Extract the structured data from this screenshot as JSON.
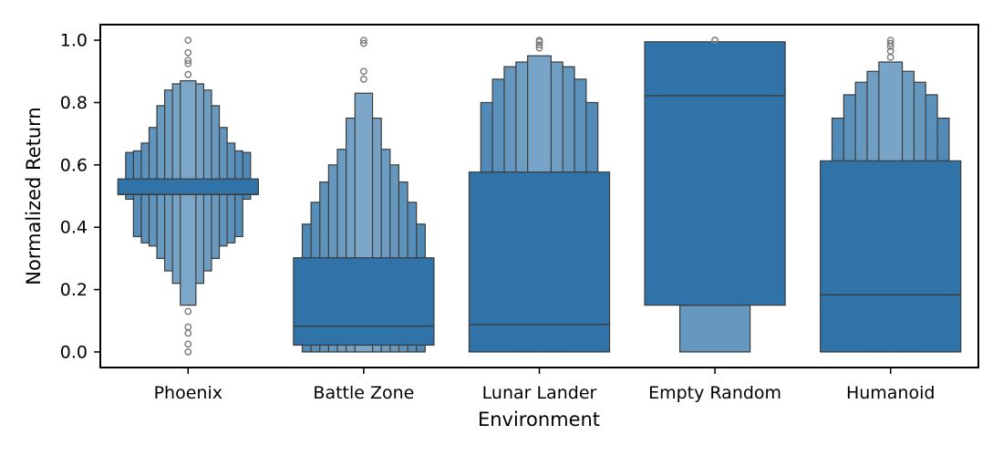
{
  "chart_data": {
    "type": "boxen",
    "xlabel": "Environment",
    "ylabel": "Normalized Return",
    "ylim": [
      -0.05,
      1.05
    ],
    "yticks": [
      0.0,
      0.2,
      0.4,
      0.6,
      0.8,
      1.0
    ],
    "ytick_labels": [
      "0.0",
      "0.2",
      "0.4",
      "0.6",
      "0.8",
      "1.0"
    ],
    "categories": [
      "Phoenix",
      "Battle Zone",
      "Lunar Lander",
      "Empty Random",
      "Humanoid"
    ],
    "colors": {
      "box": "#2f73a8",
      "edge": "#3a3a3a",
      "outlier": "#7a7a7a"
    },
    "boxes": [
      {
        "category": "Phoenix",
        "median": 0.505,
        "levels": [
          [
            0.49,
            0.64
          ],
          [
            0.37,
            0.645
          ],
          [
            0.35,
            0.67
          ],
          [
            0.34,
            0.72
          ],
          [
            0.3,
            0.79
          ],
          [
            0.26,
            0.84
          ],
          [
            0.22,
            0.86
          ],
          [
            0.15,
            0.87
          ]
        ],
        "iqr": [
          0.505,
          0.555
        ],
        "outliers": [
          0.0,
          0.025,
          0.06,
          0.08,
          0.13,
          0.89,
          0.925,
          0.935,
          0.96,
          1.0
        ]
      },
      {
        "category": "Battle Zone",
        "median": 0.083,
        "levels": [
          [
            0.0,
            0.41
          ],
          [
            0.0,
            0.48
          ],
          [
            0.0,
            0.545
          ],
          [
            0.0,
            0.6
          ],
          [
            0.0,
            0.65
          ],
          [
            0.0,
            0.75
          ],
          [
            0.0,
            0.83
          ]
        ],
        "iqr": [
          0.022,
          0.302
        ],
        "outliers": [
          0.875,
          0.9,
          0.99,
          1.0
        ]
      },
      {
        "category": "Lunar Lander",
        "median": 0.088,
        "levels": [
          [
            0.0,
            0.8
          ],
          [
            0.0,
            0.875
          ],
          [
            0.0,
            0.915
          ],
          [
            0.0,
            0.93
          ],
          [
            0.0,
            0.95
          ]
        ],
        "iqr": [
          0.0,
          0.577
        ],
        "outliers": [
          0.975,
          0.985,
          0.995,
          1.0
        ]
      },
      {
        "category": "Empty Random",
        "median": 0.822,
        "levels": [
          [
            0.0,
            0.15
          ]
        ],
        "iqr": [
          0.15,
          0.995
        ],
        "outliers": [
          1.0,
          1.0
        ]
      },
      {
        "category": "Humanoid",
        "median": 0.183,
        "levels": [
          [
            0.0,
            0.75
          ],
          [
            0.0,
            0.825
          ],
          [
            0.0,
            0.865
          ],
          [
            0.0,
            0.9
          ],
          [
            0.0,
            0.93
          ]
        ],
        "iqr": [
          0.0,
          0.613
        ],
        "outliers": [
          0.945,
          0.965,
          0.98,
          0.99,
          1.0
        ]
      }
    ]
  }
}
